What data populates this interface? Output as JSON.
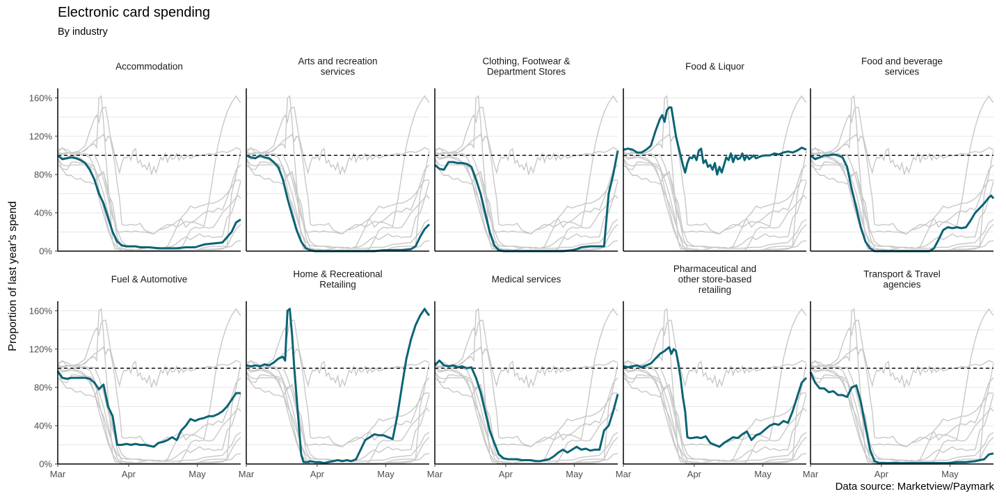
{
  "title": "Electronic card spending",
  "subtitle": "By industry",
  "source": "Data source: Marketview/Paymark",
  "colors": {
    "highlight": "#0b6374",
    "background_series": "#c8c8c8",
    "reference_line": "#000000",
    "grid": "#e6e6e6"
  },
  "chart_data": {
    "type": "line",
    "layout": "small-multiples",
    "ylabel": "Proportion of last year's spend",
    "ylim": [
      0,
      1.7
    ],
    "yticks": [
      0,
      0.4,
      0.8,
      1.2,
      1.6
    ],
    "ytick_labels": [
      "0%",
      "40%",
      "80%",
      "120%",
      "160%"
    ],
    "xticks": [
      0,
      31,
      61
    ],
    "xtick_labels": [
      "Mar",
      "Apr",
      "May"
    ],
    "xlim": [
      0,
      80
    ],
    "reference_line": 1.0,
    "panels": [
      "Accommodation",
      "Arts and recreation\nservices",
      "Clothing, Footwear &\nDepartment Stores",
      "Food & Liquor",
      "Food and beverage\nservices",
      "Fuel & Automotive",
      "Home & Recreational\nRetailing",
      "Medical services",
      "Pharmaceutical and\nother store-based\nretailing",
      "Transport & Travel\nagencies"
    ],
    "series": [
      {
        "name": "Accommodation",
        "x": [
          0,
          2,
          4,
          6,
          8,
          10,
          12,
          14,
          16,
          18,
          20,
          22,
          24,
          26,
          28,
          30,
          32,
          34,
          36,
          40,
          44,
          48,
          52,
          56,
          60,
          64,
          68,
          72,
          76,
          78,
          80
        ],
        "y": [
          1.0,
          0.96,
          0.97,
          0.98,
          0.97,
          0.95,
          0.92,
          0.85,
          0.75,
          0.6,
          0.5,
          0.35,
          0.2,
          0.1,
          0.06,
          0.05,
          0.05,
          0.05,
          0.04,
          0.04,
          0.03,
          0.03,
          0.03,
          0.04,
          0.04,
          0.07,
          0.08,
          0.09,
          0.2,
          0.3,
          0.33
        ]
      },
      {
        "name": "Arts and recreation\nservices",
        "x": [
          0,
          2,
          4,
          6,
          8,
          10,
          12,
          14,
          16,
          18,
          20,
          22,
          24,
          26,
          28,
          30,
          32,
          36,
          40,
          46,
          52,
          56,
          60,
          64,
          68,
          72,
          74,
          76,
          78,
          80
        ],
        "y": [
          1.0,
          0.98,
          0.97,
          1.0,
          0.98,
          0.97,
          0.93,
          0.88,
          0.75,
          0.55,
          0.38,
          0.22,
          0.1,
          0.03,
          0.01,
          0.0,
          0.0,
          0.0,
          0.0,
          0.0,
          0.0,
          0.0,
          0.01,
          0.01,
          0.01,
          0.02,
          0.05,
          0.15,
          0.23,
          0.28
        ]
      },
      {
        "name": "Clothing, Footwear &\nDepartment Stores",
        "x": [
          0,
          2,
          4,
          6,
          8,
          10,
          12,
          14,
          16,
          18,
          20,
          22,
          24,
          26,
          28,
          30,
          32,
          36,
          40,
          46,
          52,
          56,
          60,
          62,
          64,
          68,
          72,
          74,
          76,
          78,
          80
        ],
        "y": [
          0.9,
          0.86,
          0.85,
          0.93,
          0.93,
          0.92,
          0.92,
          0.91,
          0.88,
          0.75,
          0.6,
          0.4,
          0.2,
          0.06,
          0.01,
          0.0,
          0.0,
          0.0,
          0.0,
          0.0,
          0.0,
          0.0,
          0.01,
          0.02,
          0.04,
          0.05,
          0.05,
          0.05,
          0.6,
          0.8,
          1.05
        ]
      },
      {
        "name": "Food & Liquor",
        "x": [
          0,
          2,
          4,
          6,
          8,
          10,
          12,
          14,
          16,
          17,
          18,
          19,
          20,
          21,
          22,
          23,
          24,
          25,
          26,
          27,
          28,
          29,
          30,
          31,
          32,
          33,
          34,
          35,
          36,
          37,
          38,
          39,
          40,
          41,
          42,
          43,
          44,
          45,
          46,
          47,
          48,
          49,
          50,
          51,
          52,
          53,
          54,
          55,
          56,
          57,
          58,
          60,
          62,
          64,
          66,
          68,
          70,
          72,
          74,
          76,
          78,
          80
        ],
        "y": [
          1.06,
          1.07,
          1.06,
          1.03,
          1.03,
          1.06,
          1.1,
          1.25,
          1.38,
          1.42,
          1.35,
          1.47,
          1.5,
          1.5,
          1.35,
          1.2,
          1.1,
          1.0,
          0.9,
          0.82,
          0.92,
          0.98,
          0.97,
          1.0,
          0.95,
          1.05,
          1.07,
          0.92,
          0.95,
          0.88,
          0.9,
          0.85,
          0.92,
          0.8,
          0.88,
          0.82,
          0.9,
          0.98,
          0.95,
          1.02,
          0.93,
          1.0,
          0.96,
          0.97,
          1.02,
          0.95,
          1.0,
          0.96,
          0.98,
          1.0,
          0.97,
          0.99,
          1.0,
          1.0,
          1.02,
          1.01,
          1.03,
          1.04,
          1.03,
          1.05,
          1.08,
          1.06
        ]
      },
      {
        "name": "Food and beverage\nservices",
        "x": [
          0,
          2,
          4,
          6,
          8,
          10,
          12,
          14,
          16,
          18,
          20,
          22,
          24,
          26,
          28,
          30,
          32,
          36,
          40,
          44,
          48,
          52,
          54,
          56,
          58,
          60,
          62,
          64,
          66,
          68,
          70,
          72,
          74,
          76,
          78,
          79,
          80
        ],
        "y": [
          1.0,
          0.96,
          0.98,
          1.0,
          1.0,
          1.01,
          1.0,
          0.98,
          0.88,
          0.65,
          0.45,
          0.25,
          0.1,
          0.03,
          0.0,
          0.0,
          0.0,
          0.0,
          0.0,
          0.0,
          0.0,
          0.0,
          0.03,
          0.12,
          0.22,
          0.25,
          0.24,
          0.25,
          0.24,
          0.25,
          0.32,
          0.4,
          0.45,
          0.5,
          0.56,
          0.58,
          0.55
        ]
      },
      {
        "name": "Fuel & Automotive",
        "x": [
          0,
          2,
          4,
          6,
          8,
          10,
          12,
          14,
          16,
          18,
          20,
          22,
          24,
          26,
          28,
          30,
          32,
          34,
          36,
          38,
          40,
          42,
          44,
          46,
          48,
          50,
          52,
          54,
          56,
          58,
          60,
          62,
          64,
          66,
          68,
          70,
          72,
          74,
          76,
          78,
          80
        ],
        "y": [
          0.97,
          0.9,
          0.89,
          0.9,
          0.9,
          0.9,
          0.9,
          0.89,
          0.85,
          0.78,
          0.83,
          0.6,
          0.5,
          0.2,
          0.2,
          0.21,
          0.2,
          0.21,
          0.2,
          0.2,
          0.19,
          0.18,
          0.22,
          0.23,
          0.25,
          0.28,
          0.25,
          0.35,
          0.4,
          0.47,
          0.45,
          0.47,
          0.48,
          0.5,
          0.5,
          0.52,
          0.55,
          0.6,
          0.67,
          0.74,
          0.74
        ]
      },
      {
        "name": "Home & Recreational\nRetailing",
        "x": [
          0,
          2,
          4,
          6,
          8,
          10,
          12,
          14,
          16,
          17,
          18,
          19,
          20,
          21,
          22,
          23,
          24,
          25,
          26,
          27,
          28,
          30,
          32,
          34,
          36,
          38,
          40,
          42,
          44,
          46,
          48,
          50,
          52,
          54,
          56,
          58,
          60,
          62,
          64,
          66,
          68,
          70,
          72,
          74,
          76,
          78,
          79,
          80
        ],
        "y": [
          1.03,
          1.02,
          1.03,
          1.02,
          1.04,
          1.03,
          1.06,
          1.1,
          1.12,
          1.08,
          1.6,
          1.62,
          1.35,
          1.0,
          0.7,
          0.4,
          0.1,
          0.02,
          0.02,
          0.02,
          0.03,
          0.02,
          0.02,
          0.01,
          0.02,
          0.03,
          0.04,
          0.03,
          0.04,
          0.03,
          0.05,
          0.15,
          0.25,
          0.28,
          0.31,
          0.3,
          0.3,
          0.28,
          0.26,
          0.5,
          0.8,
          1.1,
          1.3,
          1.45,
          1.55,
          1.62,
          1.58,
          1.55
        ]
      },
      {
        "name": "Medical services",
        "x": [
          0,
          2,
          4,
          6,
          8,
          10,
          12,
          14,
          16,
          18,
          20,
          22,
          24,
          26,
          28,
          30,
          32,
          34,
          36,
          38,
          40,
          42,
          44,
          46,
          48,
          50,
          52,
          54,
          56,
          58,
          60,
          62,
          64,
          66,
          68,
          70,
          72,
          74,
          76,
          78,
          80
        ],
        "y": [
          1.03,
          1.08,
          1.03,
          1.02,
          1.03,
          1.01,
          1.02,
          1.0,
          1.01,
          0.9,
          0.75,
          0.55,
          0.35,
          0.22,
          0.1,
          0.06,
          0.05,
          0.05,
          0.05,
          0.04,
          0.04,
          0.04,
          0.03,
          0.03,
          0.04,
          0.05,
          0.08,
          0.12,
          0.15,
          0.12,
          0.15,
          0.18,
          0.15,
          0.16,
          0.14,
          0.15,
          0.15,
          0.35,
          0.4,
          0.55,
          0.73
        ]
      },
      {
        "name": "Pharmaceutical and\nother store-based\nretailing",
        "x": [
          0,
          2,
          4,
          6,
          8,
          10,
          12,
          14,
          16,
          18,
          19,
          20,
          21,
          22,
          23,
          24,
          25,
          26,
          27,
          28,
          29,
          30,
          32,
          34,
          36,
          38,
          40,
          42,
          44,
          46,
          48,
          50,
          52,
          54,
          56,
          58,
          60,
          62,
          64,
          66,
          68,
          70,
          72,
          74,
          76,
          78,
          80
        ],
        "y": [
          1.02,
          1.01,
          1.02,
          1.03,
          1.01,
          1.03,
          1.05,
          1.1,
          1.15,
          1.18,
          1.2,
          1.22,
          1.15,
          1.2,
          1.18,
          1.05,
          0.9,
          0.7,
          0.55,
          0.28,
          0.27,
          0.27,
          0.28,
          0.27,
          0.29,
          0.22,
          0.2,
          0.18,
          0.22,
          0.25,
          0.28,
          0.27,
          0.31,
          0.34,
          0.25,
          0.3,
          0.32,
          0.36,
          0.4,
          0.42,
          0.41,
          0.45,
          0.43,
          0.55,
          0.7,
          0.85,
          0.9
        ]
      },
      {
        "name": "Transport & Travel\nagencies",
        "x": [
          0,
          2,
          4,
          6,
          8,
          10,
          12,
          14,
          16,
          18,
          20,
          22,
          24,
          26,
          28,
          30,
          32,
          36,
          40,
          44,
          48,
          52,
          56,
          60,
          64,
          68,
          72,
          76,
          78,
          80
        ],
        "y": [
          0.96,
          0.85,
          0.79,
          0.79,
          0.75,
          0.76,
          0.72,
          0.72,
          0.7,
          0.8,
          0.82,
          0.65,
          0.4,
          0.15,
          0.03,
          0.01,
          0.01,
          0.01,
          0.01,
          0.01,
          0.01,
          0.01,
          0.01,
          0.01,
          0.02,
          0.02,
          0.03,
          0.05,
          0.1,
          0.11
        ]
      }
    ]
  }
}
